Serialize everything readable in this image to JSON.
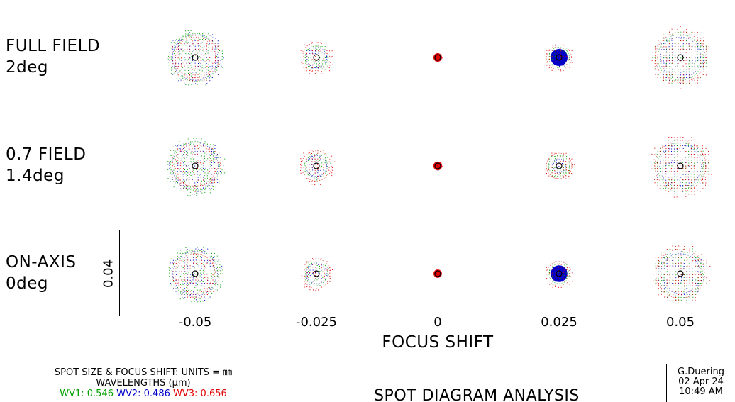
{
  "fields": [
    {
      "name": "FULL FIELD",
      "angle": "2deg"
    },
    {
      "name": "0.7 FIELD",
      "angle": "1.4deg"
    },
    {
      "name": "ON-AXIS",
      "angle": "0deg"
    }
  ],
  "focus_shifts": [
    "-0.05",
    "-0.025",
    "0",
    "0.025",
    "0.05"
  ],
  "focus_axis_title": "FOCUS SHIFT",
  "scale_value": "0.04",
  "footer": {
    "units_line": "SPOT SIZE & FOCUS SHIFT: UNITS = ㎜",
    "wavelengths_title": "WAVELENGTHS (μm)",
    "wavelengths": [
      {
        "label": "WV1: 0.546",
        "color": "#00a000"
      },
      {
        "label": "WV2: 0.486",
        "color": "#0000c8"
      },
      {
        "label": "WV3: 0.656",
        "color": "#e00000"
      }
    ],
    "title": "SPOT DIAGRAM ANALYSIS",
    "author": "G.Duering",
    "date": "02 Apr 24",
    "time": "10:49 AM"
  },
  "colors": {
    "wv1": "#00a000",
    "wv2": "#0000c8",
    "wv3": "#e00000",
    "airy_disk": "#000000"
  }
}
